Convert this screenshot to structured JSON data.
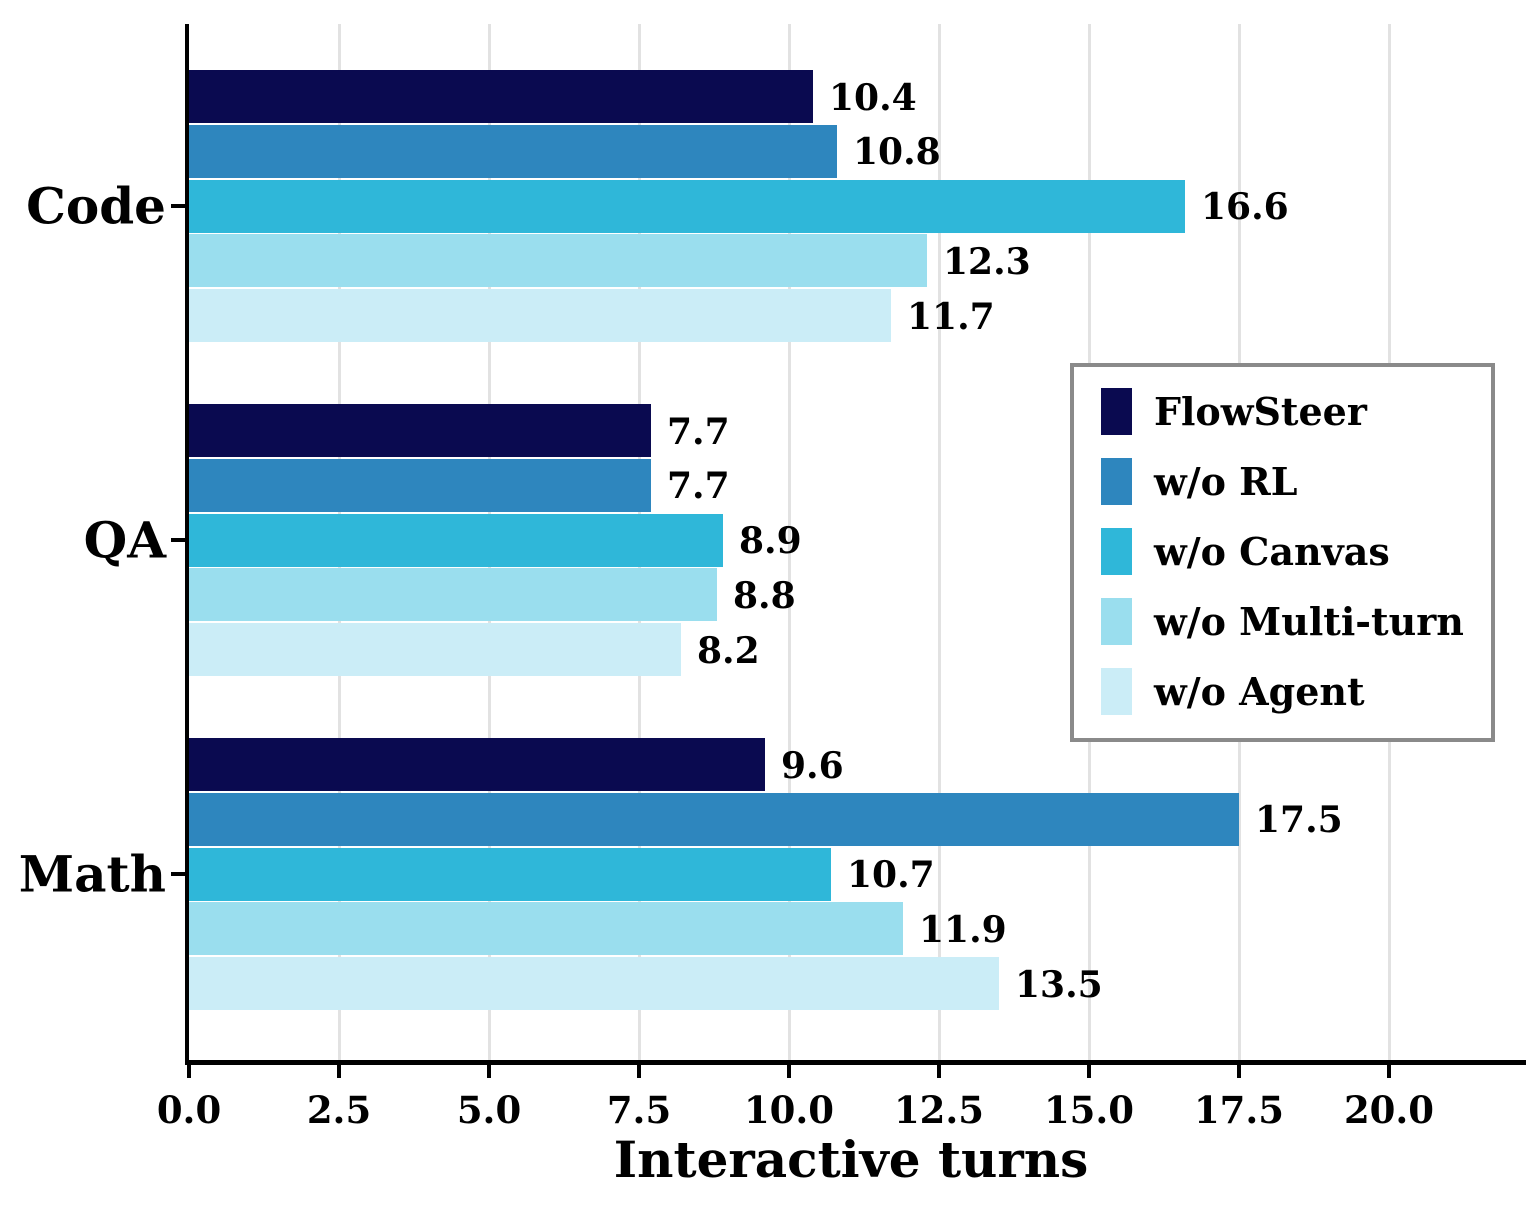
{
  "chart_data": {
    "type": "bar",
    "orientation": "horizontal",
    "title": "",
    "xlabel": "Interactive turns",
    "ylabel": "",
    "categories": [
      "Code",
      "QA",
      "Math"
    ],
    "series": [
      {
        "name": "FlowSteer",
        "color": "#0a0a50",
        "values": [
          10.4,
          7.7,
          9.6
        ]
      },
      {
        "name": "w/o RL",
        "color": "#2e86be",
        "values": [
          10.8,
          7.7,
          17.5
        ]
      },
      {
        "name": "w/o Canvas",
        "color": "#2fb7d9",
        "values": [
          16.6,
          8.9,
          10.7
        ]
      },
      {
        "name": "w/o Multi-turn",
        "color": "#9adeee",
        "values": [
          12.3,
          8.8,
          11.9
        ]
      },
      {
        "name": "w/o Agent",
        "color": "#cbedf7",
        "values": [
          11.7,
          8.2,
          13.5
        ]
      }
    ],
    "x_ticks": [
      "0.0",
      "2.5",
      "5.0",
      "7.5",
      "10.0",
      "12.5",
      "15.0",
      "17.5",
      "20.0"
    ],
    "xlim": [
      0,
      22.4
    ],
    "grid": "vertical",
    "gridline_color": "#e2e2e2",
    "bar_labels": true,
    "legend_position": "center-right",
    "legend_border_color": "#8a8a8a"
  }
}
